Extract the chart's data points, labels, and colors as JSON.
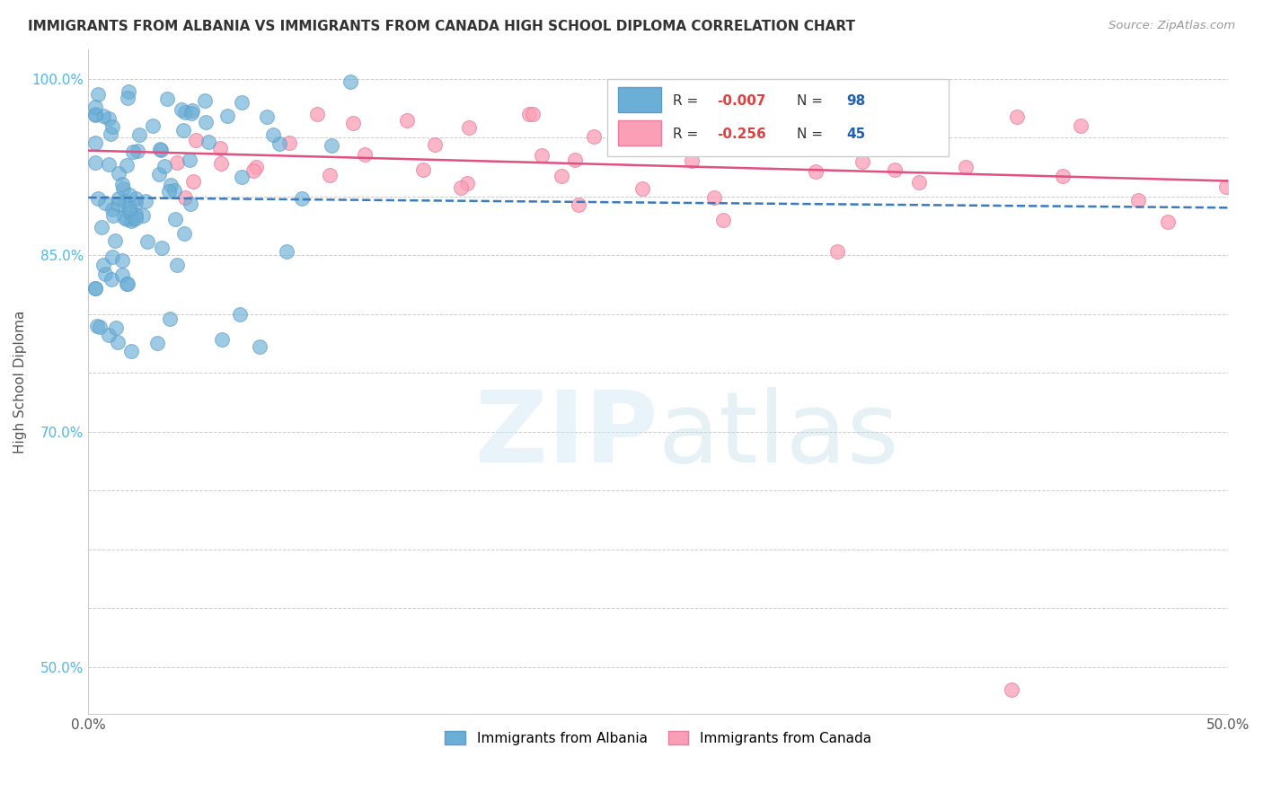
{
  "title": "IMMIGRANTS FROM ALBANIA VS IMMIGRANTS FROM CANADA HIGH SCHOOL DIPLOMA CORRELATION CHART",
  "source": "Source: ZipAtlas.com",
  "ylabel": "High School Diploma",
  "xlabel": "",
  "xlim": [
    0.0,
    0.5
  ],
  "ylim": [
    0.46,
    1.025
  ],
  "xticks": [
    0.0,
    0.05,
    0.1,
    0.15,
    0.2,
    0.25,
    0.3,
    0.35,
    0.4,
    0.45,
    0.5
  ],
  "xticklabels_show": [
    "0.0%",
    "50.0%"
  ],
  "ytick_positions": [
    0.5,
    0.55,
    0.6,
    0.65,
    0.7,
    0.75,
    0.8,
    0.85,
    0.9,
    0.95,
    1.0
  ],
  "ytick_labels": [
    "50.0%",
    "",
    "",
    "",
    "70.0%",
    "",
    "",
    "85.0%",
    "",
    "",
    "100.0%"
  ],
  "watermark_zip": "ZIP",
  "watermark_atlas": "atlas",
  "albania_color": "#a8c8e8",
  "albania_fill": "#6baed6",
  "canada_color": "#f4b8cc",
  "canada_fill": "#fa9fb5",
  "albania_edge": "#5b9ec9",
  "canada_edge": "#e87fa0",
  "trend_albania_color": "#3a7abf",
  "trend_canada_color": "#e05080",
  "albania_R": "-0.007",
  "albania_N": "98",
  "canada_R": "-0.256",
  "canada_N": "45",
  "legend_label_albania": "Immigrants from Albania",
  "legend_label_canada": "Immigrants from Canada"
}
